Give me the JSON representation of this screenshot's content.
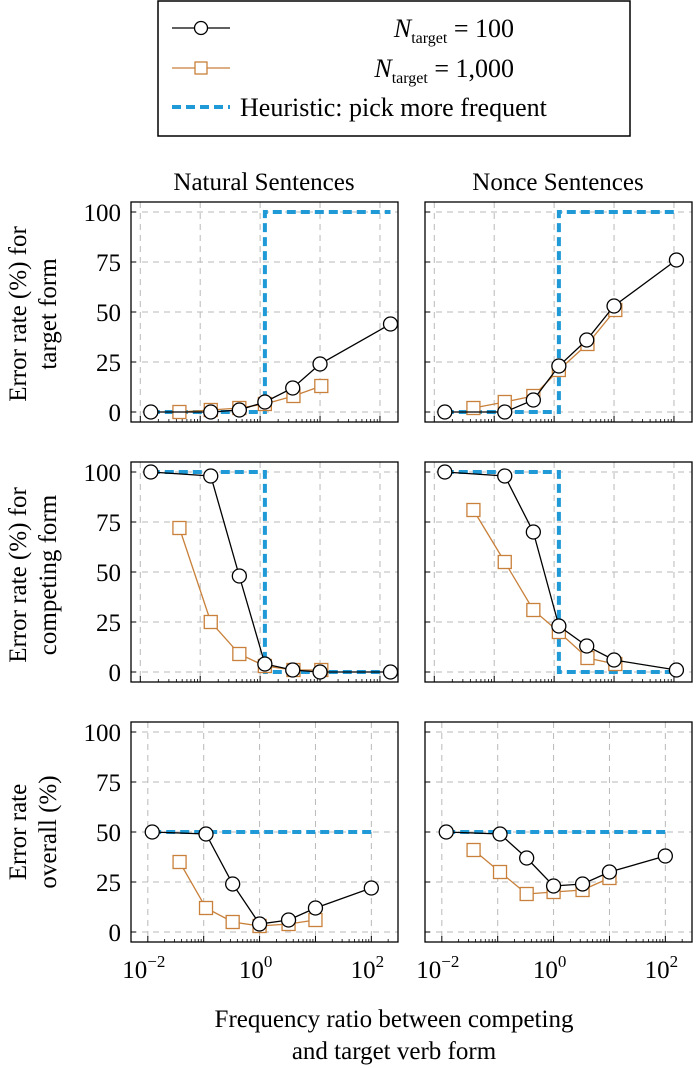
{
  "legend": {
    "n100": {
      "pre": "N",
      "sub": "target",
      "post": " = 100"
    },
    "n1000": {
      "pre": "N",
      "sub": "target",
      "post": " = 1,000"
    },
    "heuristic": "Heuristic: pick more frequent"
  },
  "columns": [
    "Natural Sentences",
    "Nonce Sentences"
  ],
  "row_labels": [
    [
      "Error rate (%) for",
      "target form"
    ],
    [
      "Error rate (%) for",
      "competing form"
    ],
    [
      "Error rate",
      "overall (%)"
    ]
  ],
  "x_axis": {
    "label_line1": "Frequency ratio between competing",
    "label_line2": "and target verb form",
    "ticks": [
      {
        "base": "10",
        "exp": "−2"
      },
      {
        "base": "10",
        "exp": "0"
      },
      {
        "base": "10",
        "exp": "2"
      }
    ]
  },
  "y_ticks": [
    "0",
    "25",
    "50",
    "75",
    "100"
  ],
  "colors": {
    "n100": "#000000",
    "n1000": "#c8803a",
    "heuristic": "#1f9ad6",
    "grid": "#b9b9b9"
  },
  "chart_data": [
    {
      "type": "line",
      "panel": "target-natural",
      "title": "Natural Sentences",
      "ylabel": "Error rate (%) for target form",
      "xscale": "log",
      "xlim": [
        0.007,
        200
      ],
      "ylim": [
        -5,
        105
      ],
      "series": [
        {
          "name": "N_target = 100",
          "x": [
            0.015,
            0.15,
            0.45,
            1.2,
            3.5,
            10.0,
            150.0
          ],
          "y": [
            0,
            0,
            1,
            5,
            12,
            24,
            44
          ]
        },
        {
          "name": "N_target = 1,000",
          "x": [
            0.045,
            0.15,
            0.45,
            1.2,
            3.6,
            10.5
          ],
          "y": [
            0,
            1,
            2,
            4,
            8,
            13
          ]
        },
        {
          "name": "Heuristic: pick more frequent",
          "x": [
            0.015,
            1.2,
            1.2,
            150.0
          ],
          "y": [
            0,
            0,
            100,
            100
          ]
        }
      ]
    },
    {
      "type": "line",
      "panel": "target-nonce",
      "title": "Nonce Sentences",
      "ylabel": "Error rate (%) for target form",
      "xscale": "log",
      "xlim": [
        0.007,
        200
      ],
      "ylim": [
        -5,
        105
      ],
      "series": [
        {
          "name": "N_target = 100",
          "x": [
            0.015,
            0.15,
            0.45,
            1.2,
            3.5,
            10.0,
            110.0
          ],
          "y": [
            0,
            0,
            6,
            23,
            36,
            53,
            76
          ]
        },
        {
          "name": "N_target = 1,000",
          "x": [
            0.045,
            0.15,
            0.45,
            1.2,
            3.6,
            10.5
          ],
          "y": [
            2,
            5,
            8,
            21,
            34,
            51
          ]
        },
        {
          "name": "Heuristic: pick more frequent",
          "x": [
            0.015,
            1.2,
            1.2,
            110.0
          ],
          "y": [
            0,
            0,
            100,
            100
          ]
        }
      ]
    },
    {
      "type": "line",
      "panel": "competing-natural",
      "title": "Natural Sentences",
      "ylabel": "Error rate (%) for competing form",
      "xscale": "log",
      "xlim": [
        0.007,
        200
      ],
      "ylim": [
        -5,
        105
      ],
      "series": [
        {
          "name": "N_target = 100",
          "x": [
            0.015,
            0.15,
            0.45,
            1.2,
            3.5,
            10.0,
            150.0
          ],
          "y": [
            100,
            98,
            48,
            4,
            1,
            0,
            0
          ]
        },
        {
          "name": "N_target = 1,000",
          "x": [
            0.045,
            0.15,
            0.45,
            1.2,
            3.6,
            10.5
          ],
          "y": [
            72,
            25,
            9,
            3,
            1,
            1
          ]
        },
        {
          "name": "Heuristic: pick more frequent",
          "x": [
            0.015,
            1.2,
            1.2,
            150.0
          ],
          "y": [
            100,
            100,
            0,
            0
          ]
        }
      ]
    },
    {
      "type": "line",
      "panel": "competing-nonce",
      "title": "Nonce Sentences",
      "ylabel": "Error rate (%) for competing form",
      "xscale": "log",
      "xlim": [
        0.007,
        200
      ],
      "ylim": [
        -5,
        105
      ],
      "series": [
        {
          "name": "N_target = 100",
          "x": [
            0.015,
            0.15,
            0.45,
            1.2,
            3.5,
            10.0,
            110.0
          ],
          "y": [
            100,
            98,
            70,
            23,
            13,
            6,
            1
          ]
        },
        {
          "name": "N_target = 1,000",
          "x": [
            0.045,
            0.15,
            0.45,
            1.2,
            3.6,
            10.5
          ],
          "y": [
            81,
            55,
            31,
            20,
            7,
            4
          ]
        },
        {
          "name": "Heuristic: pick more frequent",
          "x": [
            0.015,
            1.2,
            1.2,
            110.0
          ],
          "y": [
            100,
            100,
            0,
            0
          ]
        }
      ]
    },
    {
      "type": "line",
      "panel": "overall-natural",
      "title": "Natural Sentences",
      "ylabel": "Error rate overall (%)",
      "xscale": "log",
      "xlim": [
        0.005,
        300
      ],
      "ylim": [
        -5,
        105
      ],
      "xlabel": "Frequency ratio between competing and target verb form",
      "series": [
        {
          "name": "N_target = 100",
          "x": [
            0.012,
            0.11,
            0.33,
            1.0,
            3.3,
            10.0,
            100.0
          ],
          "y": [
            50,
            49,
            24,
            4,
            6,
            12,
            22
          ]
        },
        {
          "name": "N_target = 1,000",
          "x": [
            0.037,
            0.11,
            0.33,
            1.0,
            3.3,
            10.0
          ],
          "y": [
            35,
            12,
            5,
            3,
            4,
            6
          ]
        },
        {
          "name": "Heuristic: pick more frequent",
          "x": [
            0.012,
            100.0
          ],
          "y": [
            50,
            50
          ]
        }
      ]
    },
    {
      "type": "line",
      "panel": "overall-nonce",
      "title": "Nonce Sentences",
      "ylabel": "Error rate overall (%)",
      "xscale": "log",
      "xlim": [
        0.005,
        300
      ],
      "ylim": [
        -5,
        105
      ],
      "xlabel": "Frequency ratio between competing and target verb form",
      "series": [
        {
          "name": "N_target = 100",
          "x": [
            0.012,
            0.11,
            0.33,
            1.0,
            3.3,
            10.0,
            100.0
          ],
          "y": [
            50,
            49,
            37,
            23,
            24,
            30,
            38
          ]
        },
        {
          "name": "N_target = 1,000",
          "x": [
            0.037,
            0.11,
            0.33,
            1.0,
            3.3,
            10.0
          ],
          "y": [
            41,
            30,
            19,
            20,
            21,
            27
          ]
        },
        {
          "name": "Heuristic: pick more frequent",
          "x": [
            0.012,
            100.0
          ],
          "y": [
            50,
            50
          ]
        }
      ]
    }
  ]
}
